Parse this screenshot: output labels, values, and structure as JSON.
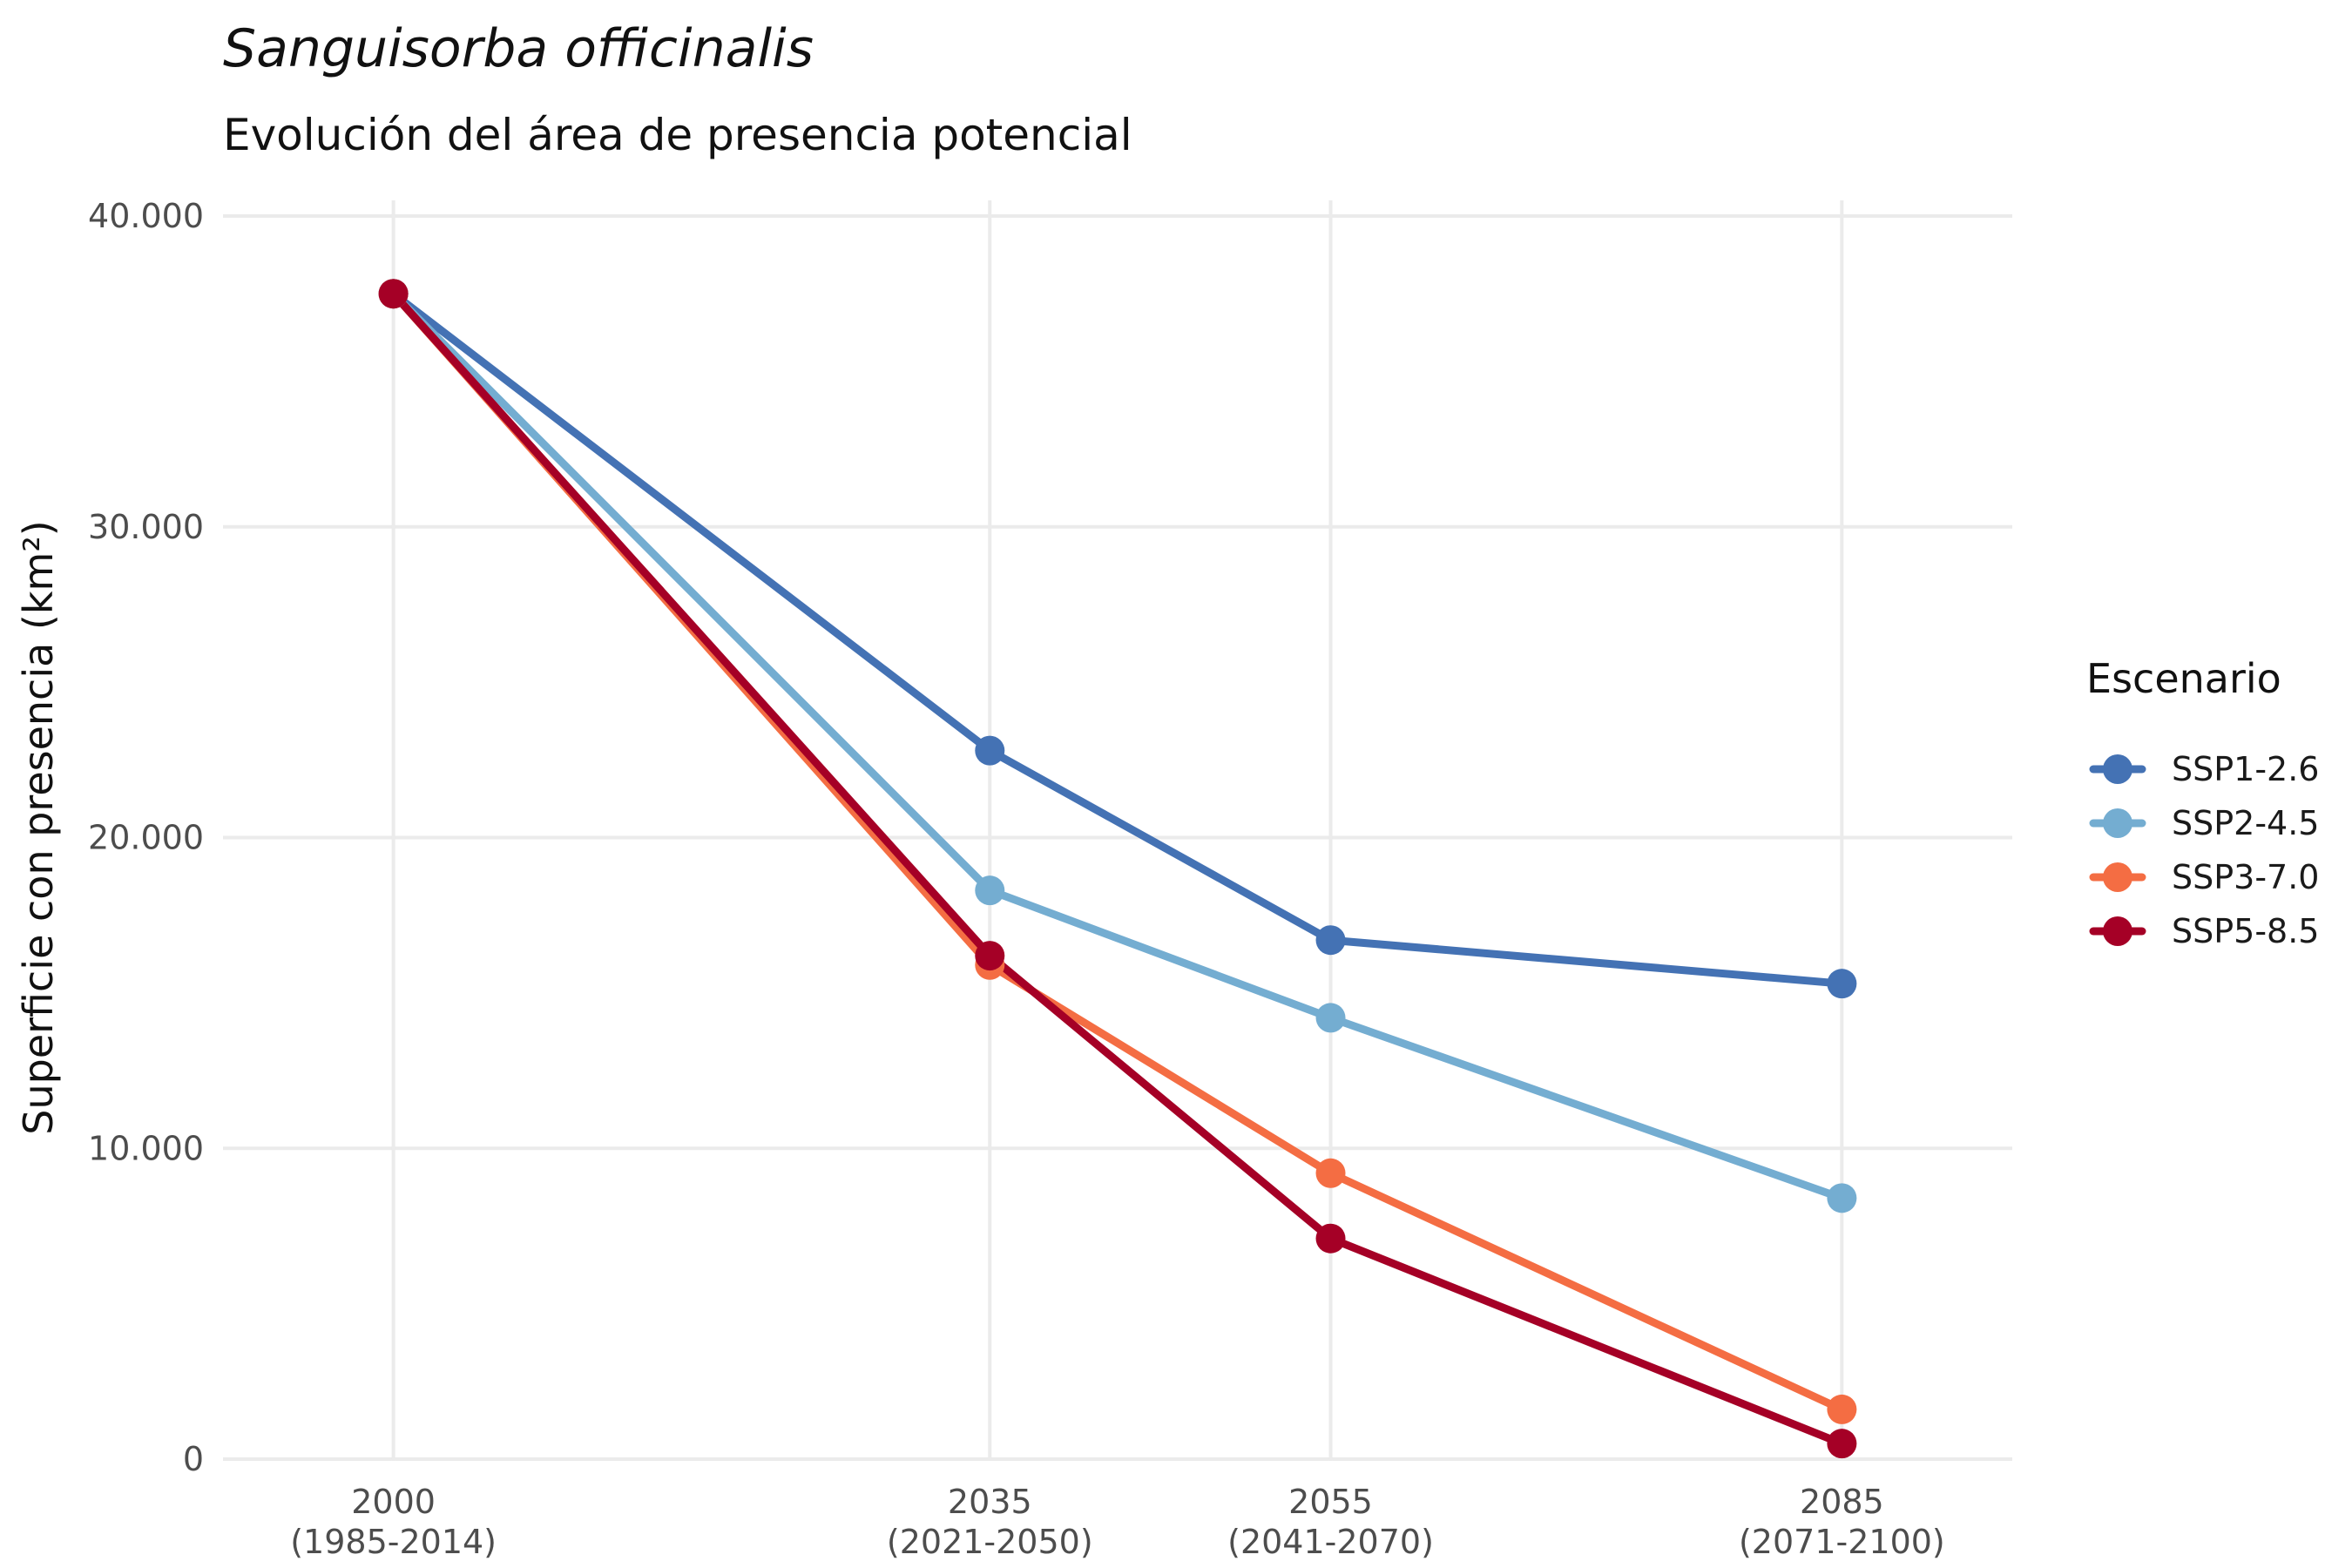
{
  "chart_data": {
    "type": "line",
    "title": "Sanguisorba officinalis",
    "subtitle": "Evolución del área de presencia potencial",
    "xlabel": "",
    "ylabel": "Superficie con presencia (km²)",
    "x": [
      2000,
      2035,
      2055,
      2085
    ],
    "x_tick_labels": [
      {
        "line1": "2000",
        "line2": "(1985-2014)"
      },
      {
        "line1": "2035",
        "line2": "(2021-2050)"
      },
      {
        "line1": "2055",
        "line2": "(2041-2070)"
      },
      {
        "line1": "2085",
        "line2": "(2071-2100)"
      }
    ],
    "xlim": [
      1990,
      2095
    ],
    "ylim": [
      0,
      40000
    ],
    "y_ticks": [
      0,
      10000,
      20000,
      30000,
      40000
    ],
    "y_tick_labels": [
      "0",
      "10.000",
      "20.000",
      "30.000",
      "40.000"
    ],
    "grid": true,
    "legend": {
      "title": "Escenario",
      "position": "right"
    },
    "series": [
      {
        "name": "SSP1-2.6",
        "color": "#4472b4",
        "values": [
          37500,
          22800,
          16700,
          15300
        ]
      },
      {
        "name": "SSP2-4.5",
        "color": "#74add1",
        "values": [
          37500,
          18300,
          14200,
          8400
        ]
      },
      {
        "name": "SSP3-7.0",
        "color": "#f46d43",
        "values": [
          37500,
          15900,
          9200,
          1600
        ]
      },
      {
        "name": "SSP5-8.5",
        "color": "#a50026",
        "values": [
          37500,
          16200,
          7100,
          500
        ]
      }
    ]
  }
}
